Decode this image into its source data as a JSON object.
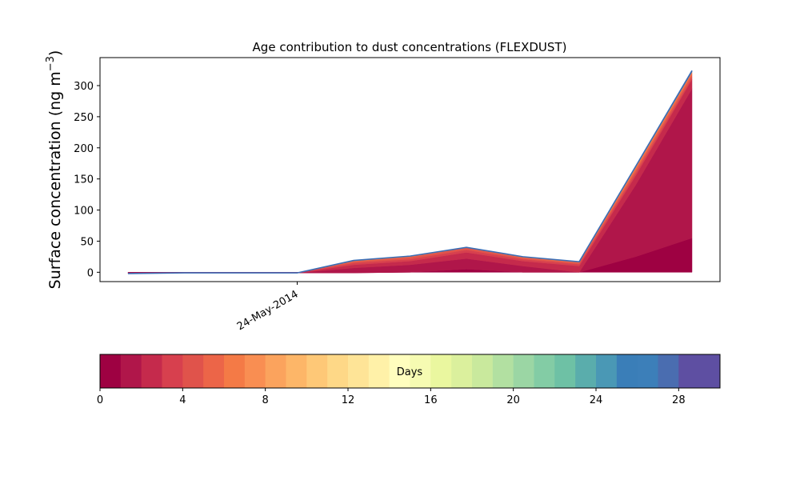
{
  "chart_data": {
    "type": "area",
    "title": "Age contribution to dust concentrations (FLEXDUST)",
    "ylabel": "Surface concentration (ng m",
    "ylabel_superscript": "−3",
    "ylabel_close": ")",
    "ylim": [
      -15,
      345
    ],
    "yticks": [
      0,
      50,
      100,
      150,
      200,
      250,
      300
    ],
    "x": [
      "2014-05-22 12:00",
      "2014-05-23",
      "2014-05-23 12:00",
      "2014-05-24",
      "2014-05-24 12:00",
      "2014-05-25",
      "2014-05-25 12:00",
      "2014-05-26",
      "2014-05-26 12:00",
      "2014-05-27",
      "2014-05-27 12:00"
    ],
    "xticks": [
      {
        "x": "2014-05-24",
        "label": "24-May-2014"
      }
    ],
    "series": [
      {
        "color": "#9e0142",
        "values": [
          -2,
          -1,
          -1,
          -1,
          -1,
          0,
          5,
          0,
          0,
          25,
          55
        ]
      },
      {
        "color": "#b0164a",
        "values": [
          0,
          0,
          0,
          0,
          8,
          12,
          17,
          10,
          0,
          115,
          240
        ]
      },
      {
        "color": "#c52a4c",
        "values": [
          0,
          0,
          0,
          0,
          5,
          6,
          10,
          8,
          10,
          15,
          15
        ]
      },
      {
        "color": "#d7404e",
        "values": [
          0,
          0,
          0,
          0,
          3,
          3,
          4,
          3,
          3,
          4,
          3
        ]
      },
      {
        "color": "#e0534b",
        "values": [
          0,
          0,
          0,
          0,
          2,
          3,
          3,
          2,
          2,
          4,
          4
        ]
      },
      {
        "color": "#ec6548",
        "values": [
          0,
          0,
          0,
          0,
          1,
          1,
          1,
          1,
          1,
          3,
          3
        ]
      },
      {
        "color": "#f47a46",
        "values": [
          0,
          0,
          0,
          0,
          1,
          1,
          0,
          1,
          1,
          3,
          2
        ]
      },
      {
        "color": "#3a7eb8",
        "values": [
          0,
          0,
          0,
          0,
          0,
          0,
          0,
          0,
          0,
          1,
          1
        ]
      },
      {
        "color": "#5e4fa2",
        "values": [
          0,
          0,
          0,
          0,
          0,
          0,
          0,
          0,
          0,
          0,
          1
        ]
      }
    ]
  },
  "colorbar": {
    "label": "Days",
    "ticks": [
      "0",
      "4",
      "8",
      "12",
      "16",
      "20",
      "24",
      "28"
    ],
    "tick_values": [
      0,
      4,
      8,
      12,
      16,
      20,
      24,
      28
    ],
    "vmin": 0,
    "vmax": 30,
    "colors": [
      "#9e0142",
      "#b0164a",
      "#c52a4c",
      "#d7404e",
      "#e0534b",
      "#ec6548",
      "#f47a46",
      "#f98e52",
      "#fba35d",
      "#fdb668",
      "#fec877",
      "#fed887",
      "#fee497",
      "#fff1a8",
      "#fffebe",
      "#f6fbb2",
      "#eaf79f",
      "#dbf09d",
      "#c9e99d",
      "#b2e0a1",
      "#9bd6a4",
      "#83cca5",
      "#6ec1a5",
      "#5aadac",
      "#4a98b5",
      "#3a7eb8",
      "#3c7fb9",
      "#4a6db0",
      "#5e4fa2",
      "#5e4fa2"
    ]
  }
}
